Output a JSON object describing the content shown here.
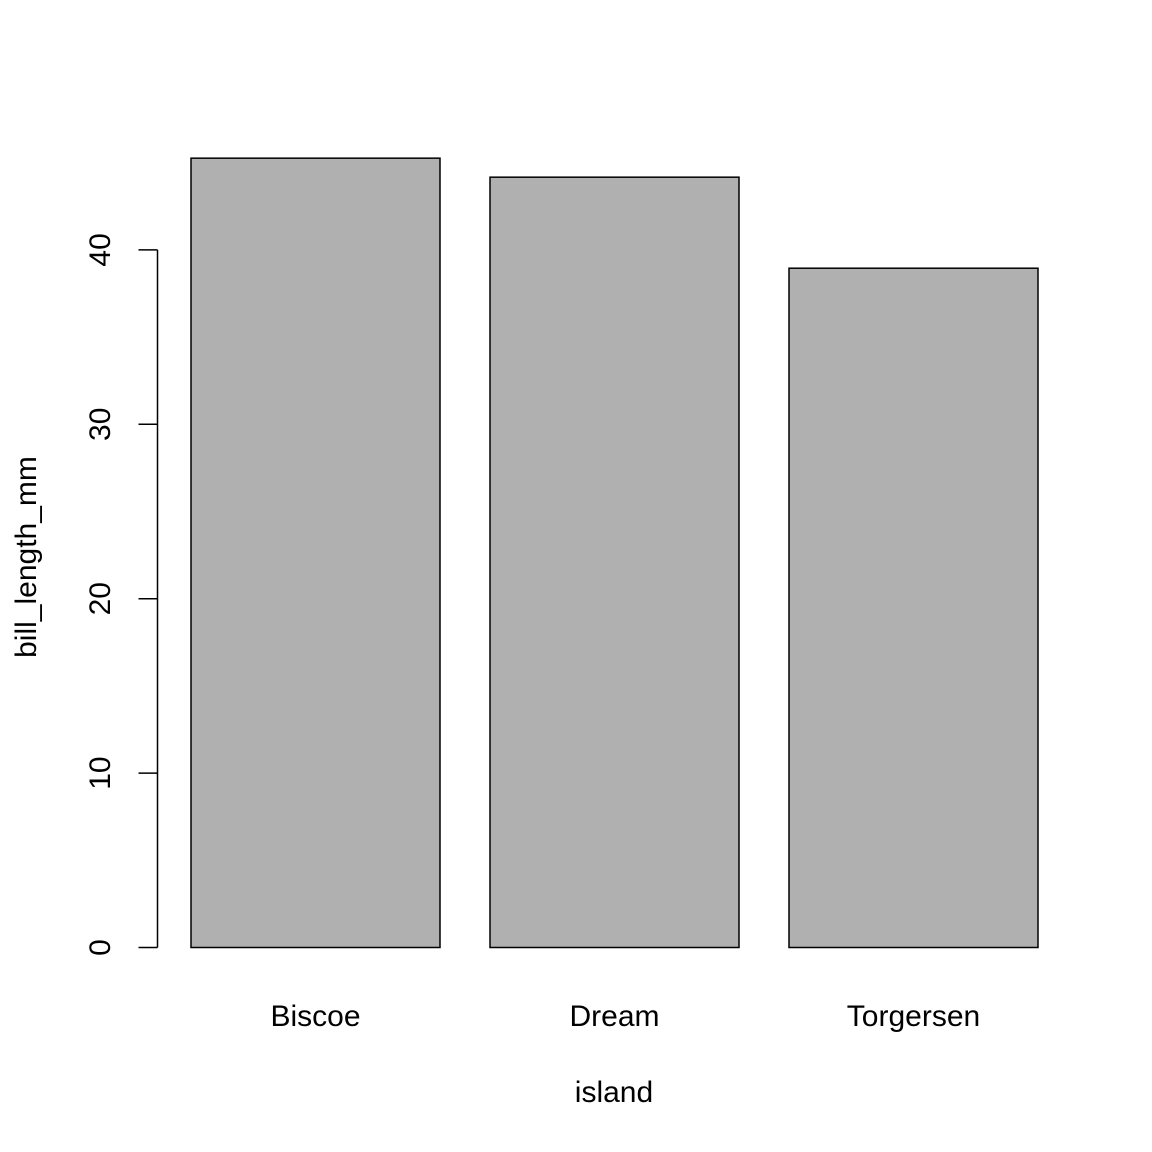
{
  "chart_data": {
    "type": "bar",
    "title": "",
    "xlabel": "island",
    "ylabel": "bill_length_mm",
    "categories": [
      "Biscoe",
      "Dream",
      "Torgersen"
    ],
    "values": [
      45.26,
      44.17,
      38.95
    ],
    "ylim": [
      0,
      46.5
    ],
    "yticks": [
      0,
      10,
      20,
      30,
      40
    ],
    "ytick_labels": [
      "0",
      "10",
      "20",
      "30",
      "40"
    ],
    "bar_color": "#b0b0b0",
    "grid": false,
    "legend": "none"
  }
}
